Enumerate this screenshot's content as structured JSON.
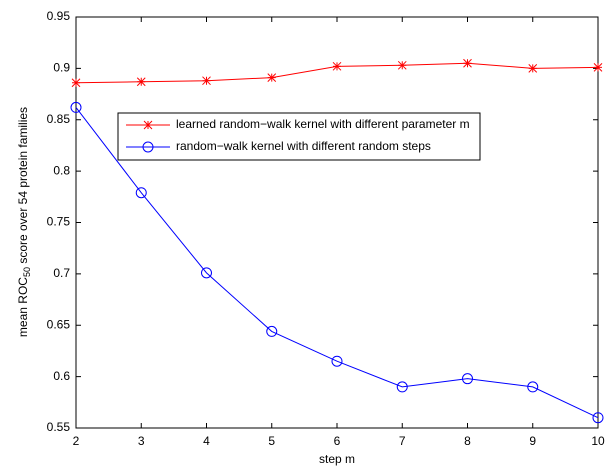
{
  "chart_data": {
    "type": "line",
    "xlabel": "step m",
    "ylabel": [
      "mean ROC",
      "50",
      " score over 54 protein families"
    ],
    "x": [
      2,
      3,
      4,
      5,
      6,
      7,
      8,
      9,
      10
    ],
    "series": [
      {
        "name": "learned random−walk kernel with different parameter m",
        "color": "#ff0000",
        "marker": "asterisk",
        "values": [
          0.886,
          0.887,
          0.888,
          0.891,
          0.902,
          0.903,
          0.905,
          0.9,
          0.901
        ]
      },
      {
        "name": "random−walk kernel with different random steps",
        "color": "#0000ff",
        "marker": "circle",
        "values": [
          0.862,
          0.779,
          0.701,
          0.644,
          0.615,
          0.59,
          0.598,
          0.59,
          0.56
        ]
      }
    ],
    "xlim": [
      2,
      10
    ],
    "xticks": [
      2,
      3,
      4,
      5,
      6,
      7,
      8,
      9,
      10
    ],
    "ylim": [
      0.55,
      0.95
    ],
    "yticks": [
      0.55,
      0.6,
      0.65,
      0.7,
      0.75,
      0.8,
      0.85,
      0.9,
      0.95
    ],
    "legend_loc": "upper center"
  }
}
